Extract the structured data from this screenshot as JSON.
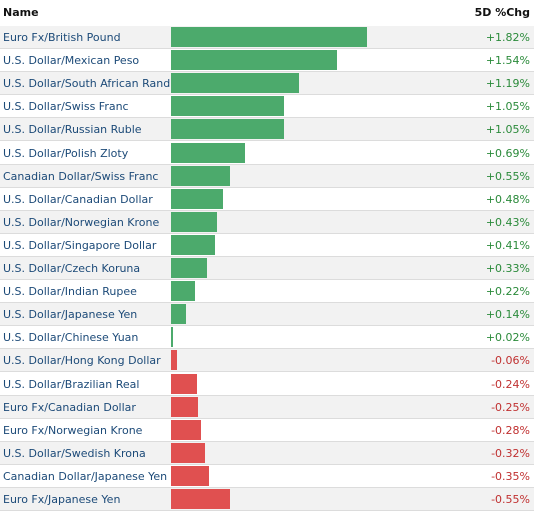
{
  "header": {
    "name_label": "Name",
    "change_label": "5D %Chg"
  },
  "colors": {
    "positive_bar": "#4caa6c",
    "negative_bar": "#e05050",
    "positive_text": "#2a8a3a",
    "negative_text": "#c03030",
    "label_text": "#1c4a78"
  },
  "chart_data": {
    "type": "bar",
    "orientation": "horizontal",
    "title": "",
    "xlabel": "",
    "ylabel": "",
    "categories": [
      "Euro Fx/British Pound",
      "U.S. Dollar/Mexican Peso",
      "U.S. Dollar/South African Rand",
      "U.S. Dollar/Swiss Franc",
      "U.S. Dollar/Russian Ruble",
      "U.S. Dollar/Polish Zloty",
      "Canadian Dollar/Swiss Franc",
      "U.S. Dollar/Canadian Dollar",
      "U.S. Dollar/Norwegian Krone",
      "U.S. Dollar/Singapore Dollar",
      "U.S. Dollar/Czech Koruna",
      "U.S. Dollar/Indian Rupee",
      "U.S. Dollar/Japanese Yen",
      "U.S. Dollar/Chinese Yuan",
      "U.S. Dollar/Hong Kong Dollar",
      "U.S. Dollar/Brazilian Real",
      "Euro Fx/Canadian Dollar",
      "Euro Fx/Norwegian Krone",
      "U.S. Dollar/Swedish Krona",
      "Canadian Dollar/Japanese Yen",
      "Euro Fx/Japanese Yen"
    ],
    "values": [
      1.82,
      1.54,
      1.19,
      1.05,
      1.05,
      0.69,
      0.55,
      0.48,
      0.43,
      0.41,
      0.33,
      0.22,
      0.14,
      0.02,
      -0.06,
      -0.24,
      -0.25,
      -0.28,
      -0.32,
      -0.35,
      -0.55
    ],
    "value_labels": [
      "+1.82%",
      "+1.54%",
      "+1.19%",
      "+1.05%",
      "+1.05%",
      "+0.69%",
      "+0.55%",
      "+0.48%",
      "+0.43%",
      "+0.41%",
      "+0.33%",
      "+0.22%",
      "+0.14%",
      "+0.02%",
      "-0.06%",
      "-0.24%",
      "-0.25%",
      "-0.28%",
      "-0.32%",
      "-0.35%",
      "-0.55%"
    ],
    "grid": false,
    "legend": "none"
  }
}
